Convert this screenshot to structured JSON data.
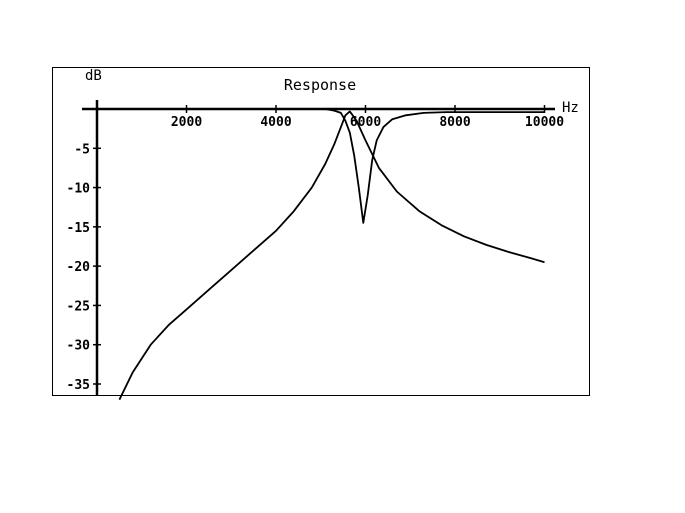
{
  "chart_data": {
    "type": "line",
    "title": "Response",
    "xlabel": "Hz",
    "ylabel": "dB",
    "xlim": [
      0,
      10500
    ],
    "ylim": [
      -37,
      0
    ],
    "grid": false,
    "x_ticks": [
      2000,
      4000,
      6000,
      8000,
      10000
    ],
    "x_tick_labels": [
      "2000",
      "4000",
      "6000",
      "8000",
      "10000"
    ],
    "y_ticks": [
      -5,
      -10,
      -15,
      -20,
      -25,
      -30,
      -35
    ],
    "y_tick_labels": [
      "-5",
      "-10",
      "-15",
      "-20",
      "-25",
      "-30",
      "-35"
    ],
    "series": [
      {
        "x": [
          500,
          800,
          1200,
          1600,
          2000,
          2500,
          3000,
          3500,
          4000,
          4400,
          4800,
          5100,
          5300,
          5450,
          5550,
          5650,
          5800,
          6000,
          6300,
          6700,
          7200,
          7700,
          8200,
          8700,
          9200,
          9700,
          10000
        ],
        "y": [
          -37,
          -33.5,
          -30,
          -27.5,
          -25.5,
          -23,
          -20.5,
          -18,
          -15.5,
          -13,
          -10,
          -7,
          -4.5,
          -2.3,
          -0.8,
          -0.3,
          -1.5,
          -4,
          -7.5,
          -10.5,
          -13,
          -14.8,
          -16.2,
          -17.3,
          -18.2,
          -19,
          -19.5
        ]
      },
      {
        "x": [
          300,
          1000,
          2000,
          3000,
          3800,
          4400,
          4800,
          5100,
          5300,
          5450,
          5550,
          5650,
          5750,
          5850,
          5950,
          6050,
          6150,
          6250,
          6400,
          6600,
          6900,
          7300,
          7800,
          8500,
          9200,
          10000
        ],
        "y": [
          0,
          0,
          0,
          0,
          0,
          0,
          0,
          0,
          -0.2,
          -0.5,
          -1.5,
          -3,
          -6,
          -10,
          -14.5,
          -11,
          -6.5,
          -4,
          -2.3,
          -1.3,
          -0.8,
          -0.5,
          -0.4,
          -0.4,
          -0.4,
          -0.4
        ]
      }
    ]
  }
}
